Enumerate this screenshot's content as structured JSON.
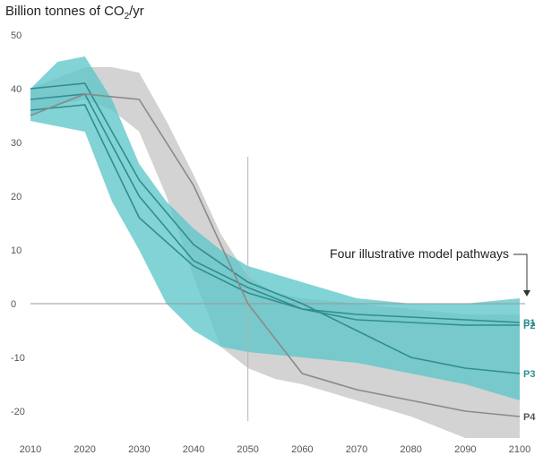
{
  "chart_data": {
    "type": "area",
    "ylabel_main": "Billion tonnes of CO",
    "ylabel_sub": "2",
    "ylabel_tail": "/yr",
    "xlim": [
      2010,
      2100
    ],
    "ylim": [
      -25,
      50
    ],
    "x_ticks": [
      2010,
      2020,
      2030,
      2040,
      2050,
      2060,
      2070,
      2080,
      2090,
      2100
    ],
    "y_ticks": [
      50,
      40,
      30,
      20,
      10,
      0,
      -10,
      -20
    ],
    "grid": false,
    "annotation": "Four illustrative model pathways",
    "colors": {
      "teal_band": "#5ec7c9",
      "gray_band": "#d3d3d3",
      "teal_line": "#2f8e8e",
      "gray_line": "#8a8a8a",
      "axis": "#999999"
    },
    "bands": [
      {
        "name": "gray-range",
        "color": "gray",
        "x": [
          2010,
          2015,
          2020,
          2025,
          2030,
          2035,
          2040,
          2045,
          2050,
          2055,
          2060,
          2070,
          2080,
          2090,
          2100
        ],
        "upper": [
          40,
          42,
          44,
          44,
          43,
          34,
          24,
          13,
          5,
          2,
          1,
          0,
          -1,
          -2,
          -2
        ],
        "lower": [
          35,
          37,
          38,
          36,
          32,
          20,
          5,
          -8,
          -12,
          -14,
          -15,
          -18,
          -21,
          -25,
          -25
        ]
      },
      {
        "name": "teal-range",
        "color": "teal",
        "x": [
          2010,
          2015,
          2020,
          2025,
          2030,
          2035,
          2040,
          2045,
          2050,
          2060,
          2070,
          2080,
          2090,
          2100
        ],
        "upper": [
          40,
          45,
          46,
          38,
          26,
          19,
          14,
          10,
          7,
          4,
          1,
          0,
          0,
          1
        ],
        "lower": [
          34,
          33,
          32,
          19,
          10,
          0,
          -5,
          -8,
          -9,
          -10,
          -11,
          -13,
          -15,
          -18
        ]
      }
    ],
    "series": [
      {
        "name": "P1",
        "color": "teal",
        "x": [
          2010,
          2020,
          2030,
          2040,
          2050,
          2060,
          2070,
          2080,
          2090,
          2100
        ],
        "y": [
          36,
          37,
          16,
          7,
          2,
          -1,
          -2,
          -2.5,
          -3,
          -3.5
        ]
      },
      {
        "name": "P2",
        "color": "teal",
        "x": [
          2010,
          2020,
          2030,
          2040,
          2050,
          2060,
          2070,
          2080,
          2090,
          2100
        ],
        "y": [
          38,
          39,
          20,
          8,
          3,
          -1,
          -3,
          -3.5,
          -4,
          -4
        ]
      },
      {
        "name": "P3",
        "color": "teal",
        "x": [
          2010,
          2020,
          2030,
          2040,
          2050,
          2060,
          2070,
          2080,
          2090,
          2100
        ],
        "y": [
          40,
          41,
          23,
          11,
          4,
          0,
          -5,
          -10,
          -12,
          -13
        ]
      },
      {
        "name": "P4",
        "color": "gray",
        "x": [
          2010,
          2020,
          2030,
          2040,
          2050,
          2060,
          2070,
          2080,
          2090,
          2100
        ],
        "y": [
          35,
          39,
          38,
          22,
          0,
          -13,
          -16,
          -18,
          -20,
          -21
        ]
      }
    ]
  }
}
